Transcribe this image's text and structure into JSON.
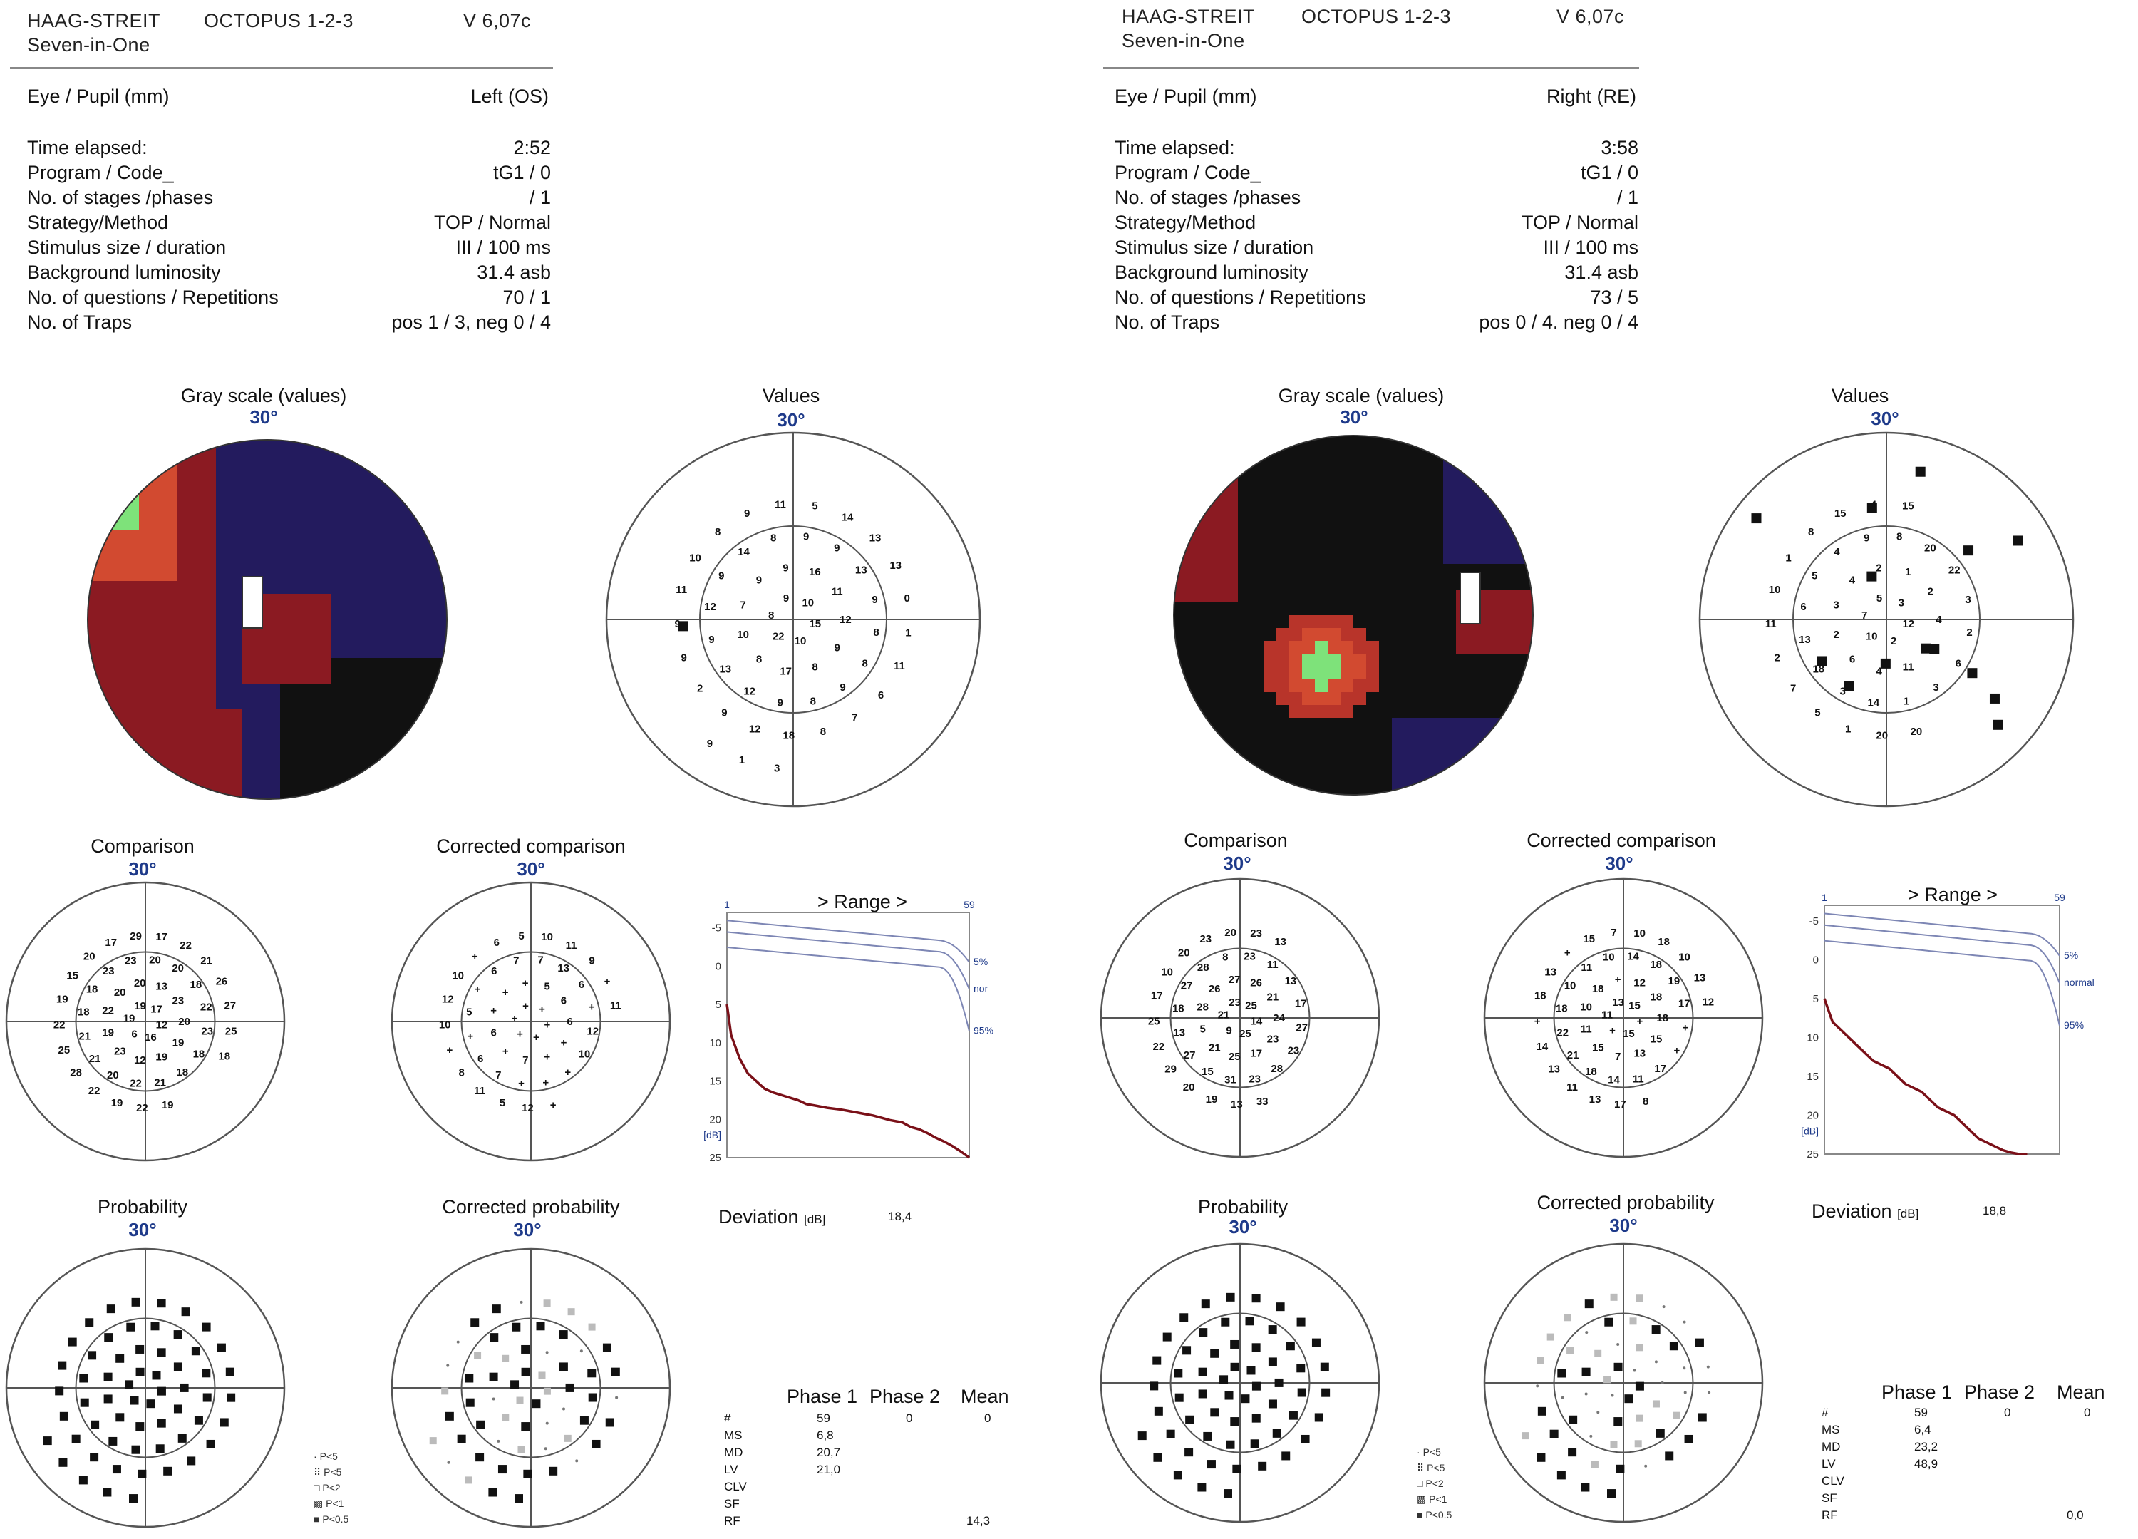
{
  "colors": {
    "black": "#111111",
    "navy": "#231b5e",
    "maroon": "#8b1a22",
    "red": "#b8342a",
    "orange": "#d24a30",
    "green": "#7ee27a",
    "axisBlue": "#1e3a8a",
    "curveRed": "#7a1018",
    "curveLine": "#7d86b4"
  },
  "left": {
    "header": {
      "brand": "HAAG-STREIT",
      "product": "OCTOPUS 1-2-3",
      "version": "V 6,07c",
      "subtitle": "Seven-in-One"
    },
    "info": {
      "eye_label": "Eye / Pupil (mm)",
      "eye_value": "Left (OS)",
      "rows": [
        {
          "label": "Time elapsed:",
          "value": "2:52"
        },
        {
          "label": "Program / Code_",
          "value": "tG1 / 0"
        },
        {
          "label": "No. of stages /phases",
          "value": "/ 1"
        },
        {
          "label": "Strategy/Method",
          "value": "TOP / Normal"
        },
        {
          "label": "Stimulus size / duration",
          "value": "III / 100 ms"
        },
        {
          "label": "Background luminosity",
          "value": "31.4 asb"
        },
        {
          "label": "No. of questions / Repetitions",
          "value": "70 / 1"
        },
        {
          "label": "No. of Traps",
          "value": "pos 1 / 3, neg 0 / 4"
        }
      ]
    },
    "titles": {
      "gray": "Gray scale (values)",
      "values": "Values",
      "comparison": "Comparison",
      "corrected_comparison": "Corrected comparison",
      "probability": "Probability",
      "corrected_probability": "Corrected probability",
      "range": "> Range >",
      "deviation": "Deviation",
      "deviation_unit": "[dB]",
      "deviation_value": "18,4"
    },
    "deg": "30°",
    "values_numbers": [
      "15",
      "10",
      "22",
      "8",
      "9",
      "10",
      "9",
      "8",
      "17",
      "8",
      "10",
      "7",
      "9",
      "9",
      "16",
      "11",
      "12",
      "9",
      "8",
      "9",
      "12",
      "13",
      "9",
      "12",
      "9",
      "14",
      "8",
      "9",
      "9",
      "13",
      "9",
      "8",
      "8",
      "8",
      "18",
      "12",
      "9",
      "2",
      "9",
      "9",
      "11",
      "10",
      "8",
      "9",
      "11",
      "5",
      "14",
      "13",
      "13",
      "0",
      "1",
      "11",
      "6",
      "7",
      "3",
      "1",
      "9"
    ],
    "values_squares": 1,
    "comparison_numbers": [
      "12",
      "16",
      "6",
      "19",
      "19",
      "17",
      "19",
      "19",
      "12",
      "23",
      "19",
      "22",
      "20",
      "20",
      "13",
      "23",
      "20",
      "18",
      "21",
      "22",
      "20",
      "21",
      "21",
      "18",
      "18",
      "23",
      "23",
      "20",
      "20",
      "18",
      "22",
      "23",
      "18",
      "19",
      "22",
      "19",
      "22",
      "28",
      "25",
      "22",
      "19",
      "15",
      "20",
      "17",
      "29",
      "17",
      "22",
      "21",
      "26",
      "27",
      "25",
      "18"
    ],
    "corrected_comparison_numbers": [
      "+",
      "+",
      "+",
      "+",
      "+",
      "+",
      "+",
      "+",
      "7",
      "+",
      "6",
      "+",
      "+",
      "+",
      "5",
      "6",
      "6",
      "+",
      "+",
      "+",
      "7",
      "6",
      "+",
      "5",
      "+",
      "6",
      "7",
      "7",
      "13",
      "6",
      "+",
      "12",
      "10",
      "+",
      "12",
      "5",
      "11",
      "8",
      "+",
      "10",
      "12",
      "10",
      "+",
      "6",
      "5",
      "10",
      "11",
      "9",
      "+",
      "11"
    ],
    "range_axis": {
      "left": "1",
      "right": "59",
      "unit": "[dB]",
      "ticks": [
        "-5",
        "0",
        "5",
        "10",
        "15",
        "20",
        "25"
      ],
      "labels": [
        "5%",
        "nor",
        "95%"
      ]
    },
    "range_data": {
      "ranks": [
        1,
        2,
        4,
        6,
        8,
        10,
        12,
        15,
        18,
        20,
        22,
        25,
        28,
        30,
        33,
        36,
        38,
        40,
        43,
        45,
        47,
        49,
        51,
        53,
        55,
        57,
        59
      ],
      "values": [
        5,
        9,
        12,
        14,
        15,
        16,
        16.5,
        17,
        17.5,
        18,
        18.2,
        18.5,
        18.7,
        18.9,
        19.2,
        19.5,
        19.8,
        20.1,
        20.4,
        21,
        21.3,
        21.8,
        22.4,
        22.9,
        23.5,
        24.2,
        25
      ]
    },
    "legend": [
      "P<5",
      "P<5",
      "P<2",
      "P<1",
      "P<0.5"
    ],
    "stats": {
      "headers": [
        "Phase 1",
        "Phase 2",
        "Mean"
      ],
      "rows": [
        {
          "label": "#",
          "p1": "59",
          "p2": "0",
          "mean": "0"
        },
        {
          "label": "MS",
          "p1": "6,8",
          "p2": "",
          "mean": ""
        },
        {
          "label": "MD",
          "p1": "20,7",
          "p2": "",
          "mean": ""
        },
        {
          "label": "LV",
          "p1": "21,0",
          "p2": "",
          "mean": ""
        },
        {
          "label": "CLV",
          "p1": "",
          "p2": "",
          "mean": ""
        },
        {
          "label": "SF",
          "p1": "",
          "p2": "",
          "mean": ""
        },
        {
          "label": "RF",
          "p1": "",
          "p2": "",
          "mean": "14,3"
        }
      ]
    }
  },
  "right": {
    "header": {
      "brand": "HAAG-STREIT",
      "product": "OCTOPUS 1-2-3",
      "version": "V 6,07c",
      "subtitle": "Seven-in-One"
    },
    "info": {
      "eye_label": "Eye / Pupil (mm)",
      "eye_value": "Right (RE)",
      "rows": [
        {
          "label": "Time elapsed:",
          "value": "3:58"
        },
        {
          "label": "Program / Code_",
          "value": "tG1 / 0"
        },
        {
          "label": "No. of stages /phases",
          "value": "/ 1"
        },
        {
          "label": "Strategy/Method",
          "value": "TOP / Normal"
        },
        {
          "label": "Stimulus size / duration",
          "value": "III / 100 ms"
        },
        {
          "label": "Background luminosity",
          "value": "31.4 asb"
        },
        {
          "label": "No. of questions / Repetitions",
          "value": "73 / 5"
        },
        {
          "label": "No. of Traps",
          "value": "pos 0 / 4. neg 0 / 4"
        }
      ]
    },
    "titles": {
      "gray": "Gray scale (values)",
      "values": "Values",
      "comparison": "Comparison",
      "corrected_comparison": "Corrected comparison",
      "probability": "Probability",
      "corrected_probability": "Corrected probability",
      "range": "> Range >",
      "deviation": "Deviation",
      "deviation_unit": "[dB]",
      "deviation_value": "18,8"
    },
    "deg": "30°",
    "values_numbers": [
      "12",
      "2",
      "10",
      "7",
      "5",
      "3",
      "5",
      "11",
      "4",
      "6",
      "2",
      "3",
      "4",
      "2",
      "1",
      "2",
      "4",
      "3",
      "1",
      "14",
      "3",
      "18",
      "13",
      "6",
      "5",
      "4",
      "9",
      "8",
      "20",
      "22",
      "3",
      "2",
      "6",
      "20",
      "20",
      "1",
      "5",
      "7",
      "2",
      "11",
      "10",
      "1",
      "8",
      "15",
      "4",
      "15"
    ],
    "values_squares": 14,
    "comparison_numbers": [
      "14",
      "25",
      "9",
      "21",
      "23",
      "25",
      "23",
      "17",
      "25",
      "21",
      "5",
      "28",
      "26",
      "27",
      "26",
      "21",
      "24",
      "28",
      "23",
      "31",
      "15",
      "27",
      "13",
      "18",
      "27",
      "28",
      "8",
      "23",
      "11",
      "13",
      "17",
      "27",
      "23",
      "33",
      "13",
      "19",
      "20",
      "29",
      "22",
      "25",
      "17",
      "10",
      "20",
      "23",
      "20",
      "23",
      "13"
    ],
    "corrected_comparison_numbers": [
      "+",
      "15",
      "+",
      "11",
      "13",
      "15",
      "15",
      "13",
      "7",
      "15",
      "11",
      "10",
      "18",
      "+",
      "12",
      "18",
      "18",
      "17",
      "11",
      "14",
      "18",
      "21",
      "22",
      "18",
      "10",
      "11",
      "10",
      "14",
      "18",
      "19",
      "17",
      "+",
      "+",
      "8",
      "17",
      "13",
      "11",
      "13",
      "14",
      "+",
      "18",
      "13",
      "+",
      "15",
      "7",
      "10",
      "18",
      "10",
      "13",
      "12"
    ],
    "range_axis": {
      "left": "1",
      "right": "59",
      "unit": "[dB]",
      "ticks": [
        "-5",
        "0",
        "5",
        "10",
        "15",
        "20",
        "25"
      ],
      "labels": [
        "5%",
        "normal",
        "95%"
      ]
    },
    "range_data": {
      "ranks": [
        1,
        3,
        5,
        7,
        9,
        11,
        13,
        15,
        17,
        19,
        21,
        23,
        25,
        27,
        29,
        31,
        33,
        35,
        37,
        39,
        41,
        43,
        45,
        47,
        49,
        51
      ],
      "values": [
        5,
        8,
        9,
        10,
        11,
        12,
        13,
        13.5,
        14,
        15,
        16,
        16.5,
        17,
        18,
        19,
        19.5,
        20,
        21,
        22,
        23,
        23.5,
        24,
        24.5,
        24.8,
        25,
        25
      ]
    },
    "legend": [
      "P<5",
      "P<5",
      "P<2",
      "P<1",
      "P<0.5"
    ],
    "stats": {
      "headers": [
        "Phase 1",
        "Phase 2",
        "Mean"
      ],
      "rows": [
        {
          "label": "#",
          "p1": "59",
          "p2": "0",
          "mean": "0"
        },
        {
          "label": "MS",
          "p1": "6,4",
          "p2": "",
          "mean": ""
        },
        {
          "label": "MD",
          "p1": "23,2",
          "p2": "",
          "mean": ""
        },
        {
          "label": "LV",
          "p1": "48,9",
          "p2": "",
          "mean": ""
        },
        {
          "label": "CLV",
          "p1": "",
          "p2": "",
          "mean": ""
        },
        {
          "label": "SF",
          "p1": "",
          "p2": "",
          "mean": ""
        },
        {
          "label": "RF",
          "p1": "",
          "p2": "",
          "mean": "0,0"
        }
      ]
    }
  }
}
